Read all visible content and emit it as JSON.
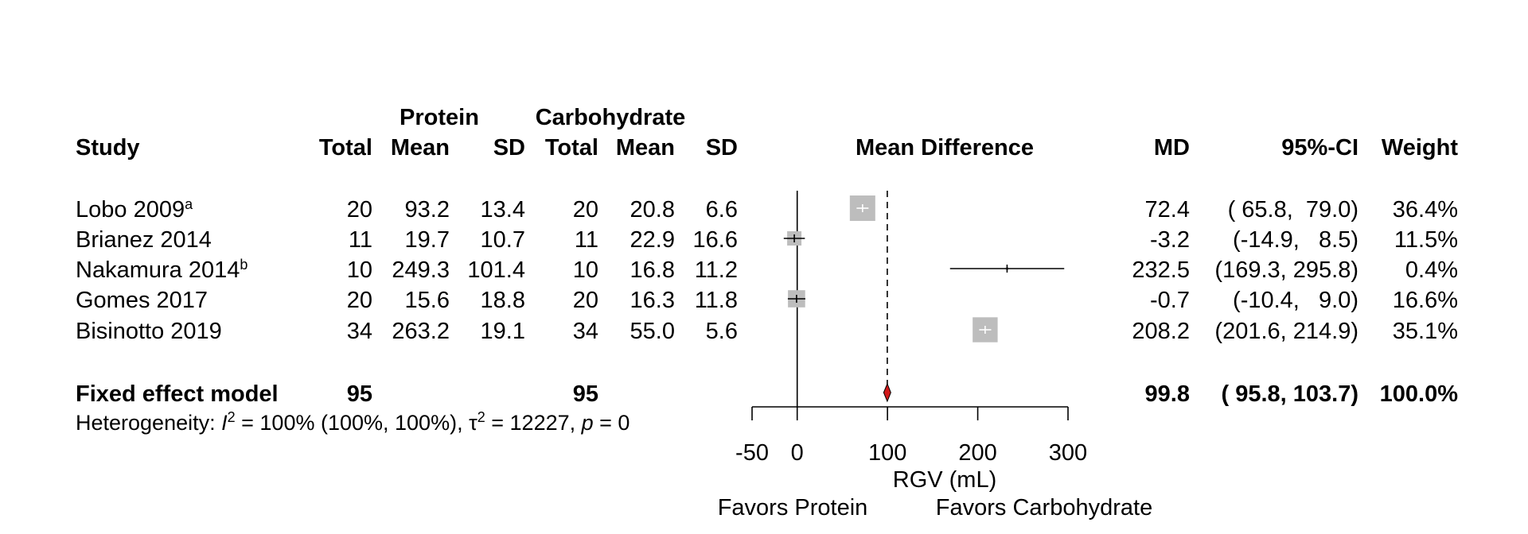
{
  "chart_data": {
    "type": "forest",
    "xlabel": "RGV (mL)",
    "xlim": [
      -50,
      300
    ],
    "ticks": [
      -50,
      0,
      100,
      200,
      300
    ],
    "tick_labels": [
      "-50",
      "0",
      "100",
      "200",
      "300"
    ],
    "reference_line": 0,
    "pooled_reference_line": 99.8,
    "favors_left": "Favors Protein",
    "favors_right": "Favors Carbohydrate",
    "group_headers": {
      "group1": "Protein",
      "group2": "Carbohydrate"
    },
    "column_headers": {
      "study": "Study",
      "total1": "Total",
      "mean1": "Mean",
      "sd1": "SD",
      "total2": "Total",
      "mean2": "Mean",
      "sd2": "SD",
      "effect": "Mean Difference",
      "md": "MD",
      "ci": "95%-CI",
      "weight": "Weight"
    },
    "studies": [
      {
        "name": "Lobo 2009",
        "sup": "a",
        "total1": "20",
        "mean1": "93.2",
        "sd1": "13.4",
        "total2": "20",
        "mean2": "20.8",
        "sd2": "6.6",
        "md": 72.4,
        "lower": 65.8,
        "upper": 79.0,
        "md_text": "72.4",
        "ci_text": "( 65.8,  79.0)",
        "weight": 36.4,
        "weight_text": "36.4%"
      },
      {
        "name": "Brianez 2014",
        "sup": "",
        "total1": "11",
        "mean1": "19.7",
        "sd1": "10.7",
        "total2": "11",
        "mean2": "22.9",
        "sd2": "16.6",
        "md": -3.2,
        "lower": -14.9,
        "upper": 8.5,
        "md_text": "-3.2",
        "ci_text": "(-14.9,   8.5)",
        "weight": 11.5,
        "weight_text": "11.5%"
      },
      {
        "name": "Nakamura 2014",
        "sup": "b",
        "total1": "10",
        "mean1": "249.3",
        "sd1": "101.4",
        "total2": "10",
        "mean2": "16.8",
        "sd2": "11.2",
        "md": 232.5,
        "lower": 169.3,
        "upper": 295.8,
        "md_text": "232.5",
        "ci_text": "(169.3, 295.8)",
        "weight": 0.4,
        "weight_text": "0.4%"
      },
      {
        "name": "Gomes 2017",
        "sup": "",
        "total1": "20",
        "mean1": "15.6",
        "sd1": "18.8",
        "total2": "20",
        "mean2": "16.3",
        "sd2": "11.8",
        "md": -0.7,
        "lower": -10.4,
        "upper": 9.0,
        "md_text": "-0.7",
        "ci_text": "(-10.4,   9.0)",
        "weight": 16.6,
        "weight_text": "16.6%"
      },
      {
        "name": "Bisinotto 2019",
        "sup": "",
        "total1": "34",
        "mean1": "263.2",
        "sd1": "19.1",
        "total2": "34",
        "mean2": "55.0",
        "sd2": "5.6",
        "md": 208.2,
        "lower": 201.6,
        "upper": 214.9,
        "md_text": "208.2",
        "ci_text": "(201.6, 214.9)",
        "weight": 35.1,
        "weight_text": "35.1%"
      }
    ],
    "pooled": {
      "name": "Fixed effect model",
      "total1": "95",
      "total2": "95",
      "md": 99.8,
      "lower": 95.8,
      "upper": 103.7,
      "md_text": "99.8",
      "ci_text": "( 95.8, 103.7)",
      "weight_text": "100.0%"
    },
    "heterogeneity": {
      "prefix": "Heterogeneity: ",
      "i2_symbol": "I",
      "i2_text": " = 100% (100%, 100%), ",
      "tau_symbol": "τ",
      "tau_text": " = 12227, ",
      "p_symbol": "p",
      "p_text": " = 0"
    },
    "colors": {
      "square": "#bdbdbd",
      "diamond": "#d0191a",
      "line": "#000000"
    }
  }
}
